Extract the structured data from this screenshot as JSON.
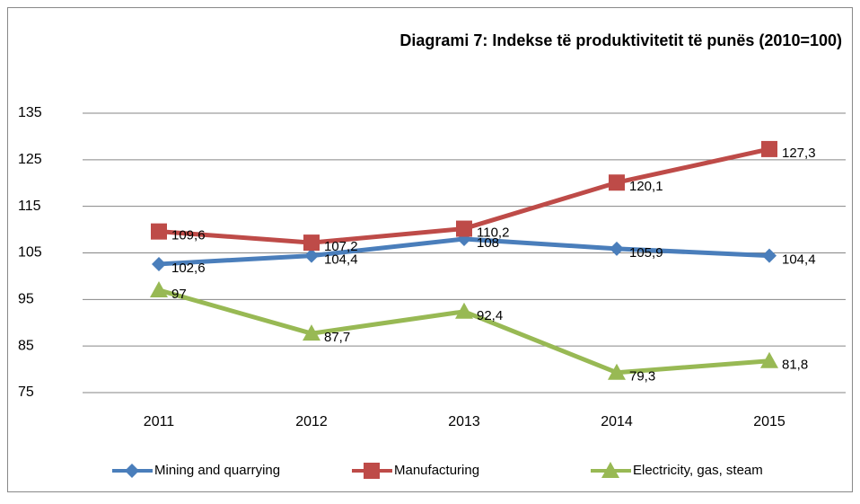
{
  "chart_data": {
    "type": "line",
    "title": "Diagrami 7: Indekse të produktivitetit të punës (2010=100)",
    "categories": [
      "2011",
      "2012",
      "2013",
      "2014",
      "2015"
    ],
    "series": [
      {
        "name": "Mining and quarrying",
        "color": "#4a7ebb",
        "marker": "diamond",
        "values": [
          102.6,
          104.4,
          108,
          105.9,
          104.4
        ],
        "value_labels": [
          "102,6",
          "104,4",
          "108",
          "105,9",
          "104,4"
        ]
      },
      {
        "name": "Manufacturing",
        "color": "#be4b48",
        "marker": "square",
        "values": [
          109.6,
          107.2,
          110.2,
          120.1,
          127.3
        ],
        "value_labels": [
          "109,6",
          "107,2",
          "110,2",
          "120,1",
          "127,3"
        ]
      },
      {
        "name": "Electricity, gas, steam",
        "color": "#98b954",
        "marker": "triangle",
        "values": [
          97,
          87.7,
          92.4,
          79.3,
          81.8
        ],
        "value_labels": [
          "97",
          "87,7",
          "92,4",
          "79,3",
          "81,8"
        ]
      }
    ],
    "ylim": [
      75,
      135
    ],
    "yticks": [
      75,
      85,
      95,
      105,
      115,
      125,
      135
    ],
    "grid": true,
    "legend": "bottom"
  }
}
